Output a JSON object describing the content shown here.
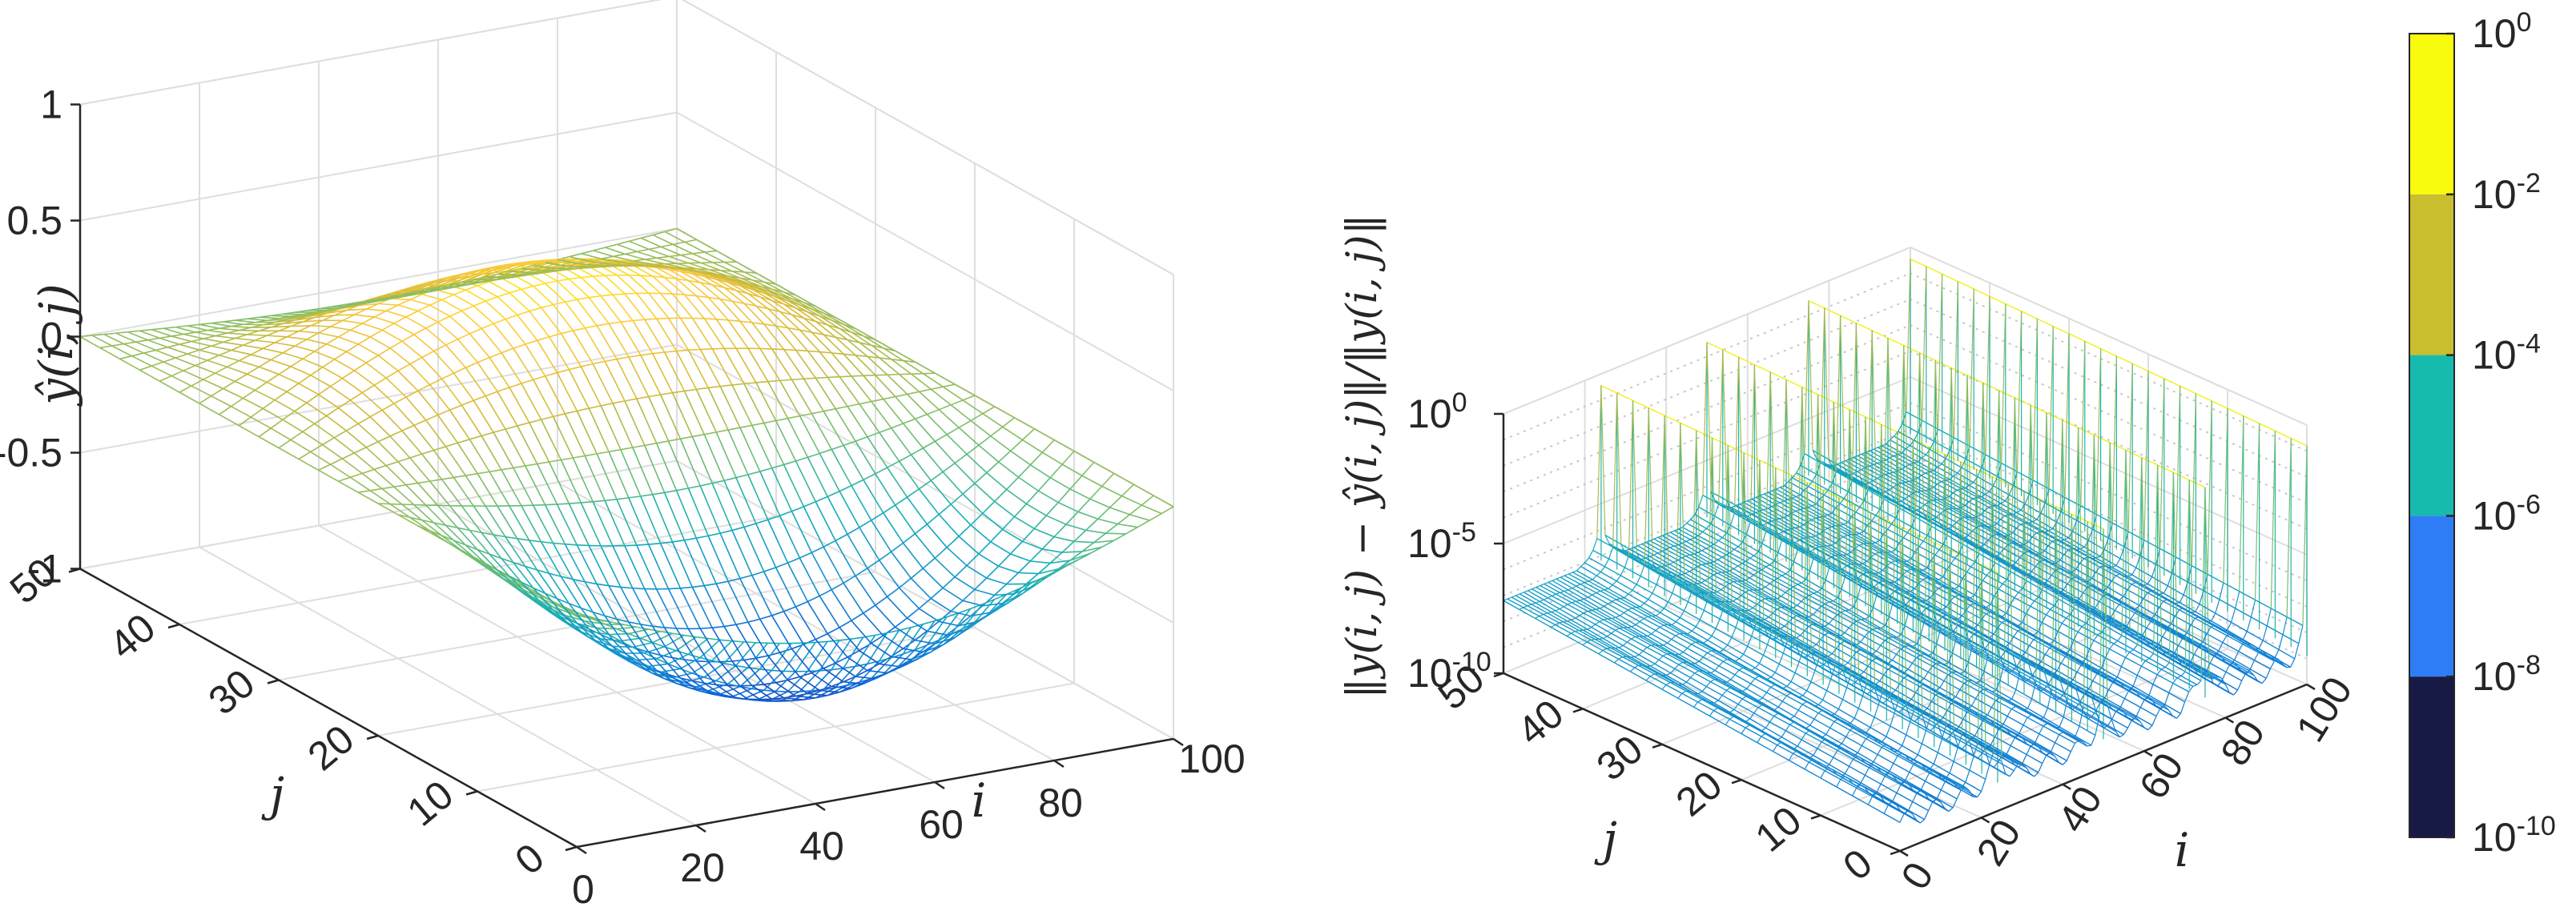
{
  "chart_data": [
    {
      "type": "surface-mesh",
      "title": "",
      "xlabel": "i",
      "ylabel": "j",
      "zlabel": "ŷ(i, j)",
      "xlim": [
        0,
        100
      ],
      "ylim": [
        0,
        50
      ],
      "zlim": [
        -1,
        1
      ],
      "x_ticks": [
        "0",
        "20",
        "40",
        "60",
        "80",
        "100"
      ],
      "y_ticks": [
        "0",
        "10",
        "20",
        "30",
        "40",
        "50"
      ],
      "z_ticks": [
        "-1",
        "-0.5",
        "0",
        "0.5",
        "1"
      ],
      "mesh": {
        "x_samples": 51,
        "y_samples": 26,
        "amplitude": 0.9,
        "periods": 1.6,
        "min_value": -0.91,
        "max_value": 0.54
      },
      "colormap": "parula"
    },
    {
      "type": "surface-mesh-log",
      "title": "",
      "xlabel": "i",
      "ylabel": "j",
      "zlabel": "‖y(i, j) − ŷ(i, j)‖/‖y(i, j)‖",
      "xlim": [
        0,
        100
      ],
      "ylim": [
        0,
        50
      ],
      "zscale": "log",
      "zlim_exponents": [
        -10,
        0
      ],
      "x_ticks": [
        "0",
        "20",
        "40",
        "60",
        "80",
        "100"
      ],
      "y_ticks": [
        "0",
        "10",
        "20",
        "30",
        "40",
        "50"
      ],
      "z_ticks": [
        {
          "base": "10",
          "exp": "0"
        },
        {
          "base": "10",
          "exp": "-5"
        },
        {
          "base": "10",
          "exp": "-10"
        }
      ],
      "spike_i_positions": [
        24,
        50,
        75,
        100
      ],
      "spike_peak_exponent": -0.8,
      "floor_exponent": {
        "at_j50": -7.2,
        "at_j0": -8.9
      },
      "colormap": "parula-binned"
    }
  ],
  "colorbar": {
    "labels": [
      {
        "base": "10",
        "exp": "0"
      },
      {
        "base": "10",
        "exp": "-2"
      },
      {
        "base": "10",
        "exp": "-4"
      },
      {
        "base": "10",
        "exp": "-6"
      },
      {
        "base": "10",
        "exp": "-8"
      },
      {
        "base": "10",
        "exp": "-10"
      }
    ],
    "bands_top_to_bottom": [
      "#f9fb0e",
      "#c8be2e",
      "#16bbae",
      "#2f7df6",
      "#171a45"
    ]
  },
  "colors": {
    "axis": "#262626",
    "grid": "#dedede",
    "spike_top": "#f0f017"
  }
}
